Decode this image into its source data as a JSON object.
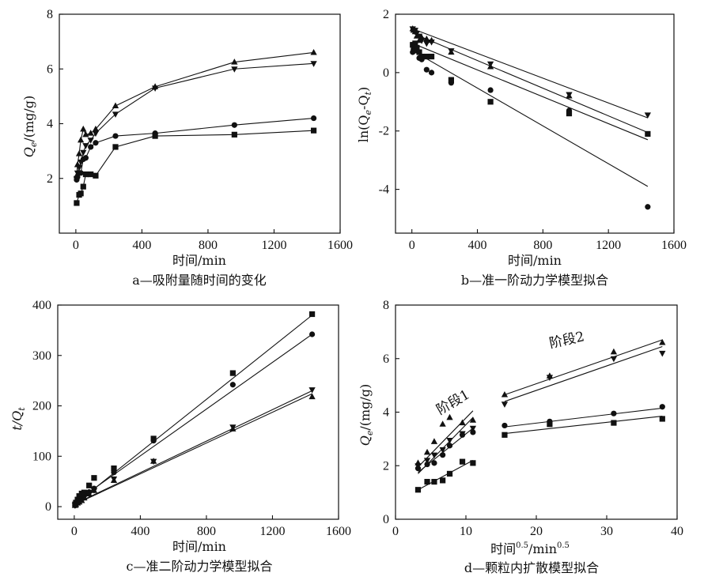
{
  "chart_data": [
    {
      "id": "a",
      "type": "line",
      "caption": "a—吸附量随时间的变化",
      "xlabel": "时间/min",
      "ylabel": {
        "main": "Q",
        "sub": "e",
        "rest": "/(mg/g)"
      },
      "xlim": [
        -100,
        1600
      ],
      "ylim": [
        0,
        8
      ],
      "xticks": [
        0,
        400,
        800,
        1200,
        1600
      ],
      "yticks": [
        2,
        4,
        6,
        8
      ],
      "series": [
        {
          "marker": "triangle-up",
          "line": true,
          "x": [
            5,
            10,
            20,
            30,
            45,
            60,
            90,
            120,
            240,
            480,
            960,
            1440
          ],
          "y": [
            2.1,
            2.5,
            2.9,
            3.4,
            3.8,
            3.6,
            3.65,
            3.8,
            4.65,
            5.35,
            6.25,
            6.6
          ]
        },
        {
          "marker": "triangle-down",
          "line": true,
          "x": [
            5,
            10,
            20,
            30,
            45,
            60,
            90,
            120,
            240,
            480,
            960,
            1440
          ],
          "y": [
            2.0,
            2.2,
            2.4,
            2.6,
            2.95,
            3.2,
            3.4,
            3.65,
            4.35,
            5.3,
            6.0,
            6.2
          ]
        },
        {
          "marker": "circle",
          "line": true,
          "x": [
            5,
            10,
            20,
            30,
            45,
            60,
            90,
            120,
            240,
            480,
            960,
            1440
          ],
          "y": [
            1.95,
            2.05,
            2.2,
            2.2,
            2.7,
            2.75,
            3.15,
            3.3,
            3.55,
            3.65,
            3.95,
            4.2
          ]
        },
        {
          "marker": "square",
          "line": true,
          "x": [
            5,
            20,
            30,
            45,
            60,
            90,
            120,
            240,
            480,
            960,
            1440
          ],
          "y": [
            1.1,
            1.4,
            1.45,
            1.7,
            2.15,
            2.15,
            2.1,
            3.15,
            3.55,
            3.6,
            3.75
          ]
        }
      ]
    },
    {
      "id": "b",
      "type": "scatter",
      "caption": "b—准一阶动力学模型拟合",
      "xlabel": "时间/min",
      "ylabel": {
        "main": "ln(Q",
        "sub1": "e",
        "mid": "-Q",
        "sub2": "t",
        "rest": ")"
      },
      "xlim": [
        -100,
        1600
      ],
      "ylim": [
        -5.5,
        2
      ],
      "xticks": [
        0,
        400,
        800,
        1200,
        1600
      ],
      "yticks": [
        -4,
        -2,
        0,
        2
      ],
      "series": [
        {
          "marker": "triangle-up",
          "x": [
            5,
            10,
            20,
            30,
            45,
            60,
            90,
            120,
            240,
            480,
            960
          ],
          "y": [
            1.5,
            1.45,
            1.4,
            1.25,
            1.1,
            1.2,
            1.15,
            1.1,
            0.7,
            0.2,
            -0.8
          ]
        },
        {
          "marker": "triangle-down",
          "x": [
            5,
            10,
            20,
            30,
            45,
            60,
            90,
            120,
            240,
            480,
            960,
            1440
          ],
          "y": [
            1.5,
            1.45,
            1.45,
            1.35,
            1.25,
            1.1,
            1.0,
            1.05,
            0.75,
            0.3,
            -0.75,
            -1.45
          ]
        },
        {
          "marker": "circle",
          "x": [
            5,
            10,
            20,
            30,
            45,
            60,
            90,
            120,
            240,
            480,
            960,
            1440
          ],
          "y": [
            0.7,
            0.8,
            0.8,
            0.75,
            0.5,
            0.45,
            0.1,
            0.0,
            -0.35,
            -0.6,
            -1.3,
            -4.6
          ]
        },
        {
          "marker": "square",
          "x": [
            5,
            10,
            20,
            30,
            45,
            60,
            90,
            120,
            240,
            480,
            960,
            1440
          ],
          "y": [
            0.95,
            0.95,
            1.0,
            0.85,
            0.7,
            0.55,
            0.55,
            0.55,
            -0.25,
            -1.0,
            -1.4,
            -2.1
          ]
        }
      ],
      "fit_lines": [
        {
          "x": [
            5,
            1440
          ],
          "y": [
            1.5,
            -1.55
          ]
        },
        {
          "x": [
            5,
            1440
          ],
          "y": [
            1.35,
            -2.05
          ]
        },
        {
          "x": [
            5,
            1440
          ],
          "y": [
            1.0,
            -2.3
          ]
        },
        {
          "x": [
            5,
            1440
          ],
          "y": [
            0.75,
            -3.9
          ]
        }
      ]
    },
    {
      "id": "c",
      "type": "scatter",
      "caption": "c—准二阶动力学模型拟合",
      "xlabel": "时间/min",
      "ylabel": {
        "main": "t/Q",
        "sub": "t",
        "rest": ""
      },
      "xlim": [
        -100,
        1600
      ],
      "ylim": [
        -25,
        400
      ],
      "xticks": [
        0,
        400,
        800,
        1200,
        1600
      ],
      "yticks": [
        0,
        100,
        200,
        300,
        400
      ],
      "series": [
        {
          "marker": "square",
          "x": [
            5,
            10,
            20,
            30,
            45,
            60,
            90,
            120,
            240,
            480,
            960,
            1440
          ],
          "y": [
            4.5,
            8,
            14,
            21,
            26,
            28,
            42,
            57,
            76,
            135,
            265,
            382
          ]
        },
        {
          "marker": "circle",
          "x": [
            5,
            10,
            20,
            30,
            45,
            60,
            90,
            120,
            240,
            480,
            960,
            1440
          ],
          "y": [
            2.5,
            5,
            9,
            14,
            17,
            22,
            29,
            36,
            68,
            131,
            242,
            342
          ]
        },
        {
          "marker": "triangle-down",
          "x": [
            5,
            10,
            20,
            30,
            45,
            60,
            90,
            120,
            240,
            480,
            960,
            1440
          ],
          "y": [
            2.5,
            4.5,
            8,
            11.5,
            15,
            18.5,
            26,
            33,
            55,
            90,
            158,
            232
          ]
        },
        {
          "marker": "triangle-up",
          "x": [
            5,
            10,
            20,
            30,
            45,
            60,
            90,
            120,
            240,
            480,
            960,
            1440
          ],
          "y": [
            2.3,
            4,
            7,
            9,
            12,
            17,
            25,
            32,
            52,
            90,
            154,
            218
          ]
        }
      ],
      "fit_lines": [
        {
          "x": [
            0,
            1440
          ],
          "y": [
            4,
            380
          ]
        },
        {
          "x": [
            0,
            1440
          ],
          "y": [
            8,
            342
          ]
        },
        {
          "x": [
            0,
            1440
          ],
          "y": [
            5,
            230
          ]
        },
        {
          "x": [
            0,
            1440
          ],
          "y": [
            4,
            224
          ]
        }
      ]
    },
    {
      "id": "d",
      "type": "scatter",
      "caption": "d—颗粒内扩散模型拟合",
      "xlabel": {
        "main": "时间",
        "sup1": "0.5",
        "mid": "/min",
        "sup2": "0.5"
      },
      "ylabel": {
        "main": "Q",
        "sub": "e",
        "rest": "/(mg/g)"
      },
      "xlim": [
        0,
        40
      ],
      "ylim": [
        0,
        8
      ],
      "xticks": [
        0,
        10,
        20,
        30,
        40
      ],
      "yticks": [
        0,
        2,
        4,
        6,
        8
      ],
      "annotations": [
        {
          "text": "阶段1",
          "x": 6.3,
          "y": 3.9,
          "rotate": -30
        },
        {
          "text": "阶段2",
          "x": 22.0,
          "y": 6.4,
          "rotate": -12
        }
      ],
      "series": [
        {
          "marker": "triangle-up",
          "x": [
            3.2,
            4.5,
            5.5,
            6.7,
            7.7,
            9.5,
            11.0,
            15.5,
            21.9,
            31.0,
            37.9
          ],
          "y": [
            2.1,
            2.5,
            2.9,
            3.55,
            3.8,
            3.6,
            3.7,
            4.65,
            5.35,
            6.25,
            6.6
          ]
        },
        {
          "marker": "triangle-down",
          "x": [
            3.2,
            4.5,
            5.5,
            6.7,
            7.7,
            9.5,
            11.0,
            15.5,
            21.9,
            31.0,
            37.9
          ],
          "y": [
            2.0,
            2.2,
            2.4,
            2.6,
            2.95,
            3.2,
            3.4,
            4.3,
            5.3,
            6.0,
            6.2
          ]
        },
        {
          "marker": "circle",
          "x": [
            3.2,
            4.5,
            5.5,
            6.7,
            7.7,
            9.5,
            11.0,
            15.5,
            21.9,
            31.0,
            37.9
          ],
          "y": [
            1.9,
            2.05,
            2.1,
            2.4,
            2.75,
            3.15,
            3.25,
            3.5,
            3.65,
            3.95,
            4.2
          ]
        },
        {
          "marker": "square",
          "x": [
            3.2,
            4.5,
            5.5,
            6.7,
            7.7,
            9.5,
            11.0,
            15.5,
            21.9,
            31.0,
            37.9
          ],
          "y": [
            1.1,
            1.4,
            1.4,
            1.45,
            1.7,
            2.15,
            2.1,
            3.15,
            3.55,
            3.6,
            3.75
          ]
        }
      ],
      "fit_lines": [
        {
          "x": [
            3.2,
            11.0
          ],
          "y": [
            1.95,
            4.05
          ]
        },
        {
          "x": [
            3.2,
            11.0
          ],
          "y": [
            1.7,
            3.8
          ]
        },
        {
          "x": [
            3.2,
            11.0
          ],
          "y": [
            1.75,
            3.4
          ]
        },
        {
          "x": [
            3.2,
            11.0
          ],
          "y": [
            1.1,
            2.2
          ]
        },
        {
          "x": [
            15.5,
            37.9
          ],
          "y": [
            4.65,
            6.7
          ]
        },
        {
          "x": [
            15.5,
            37.9
          ],
          "y": [
            4.4,
            6.45
          ]
        },
        {
          "x": [
            15.5,
            37.9
          ],
          "y": [
            3.45,
            4.15
          ]
        },
        {
          "x": [
            15.5,
            37.9
          ],
          "y": [
            3.2,
            3.85
          ]
        }
      ]
    }
  ]
}
